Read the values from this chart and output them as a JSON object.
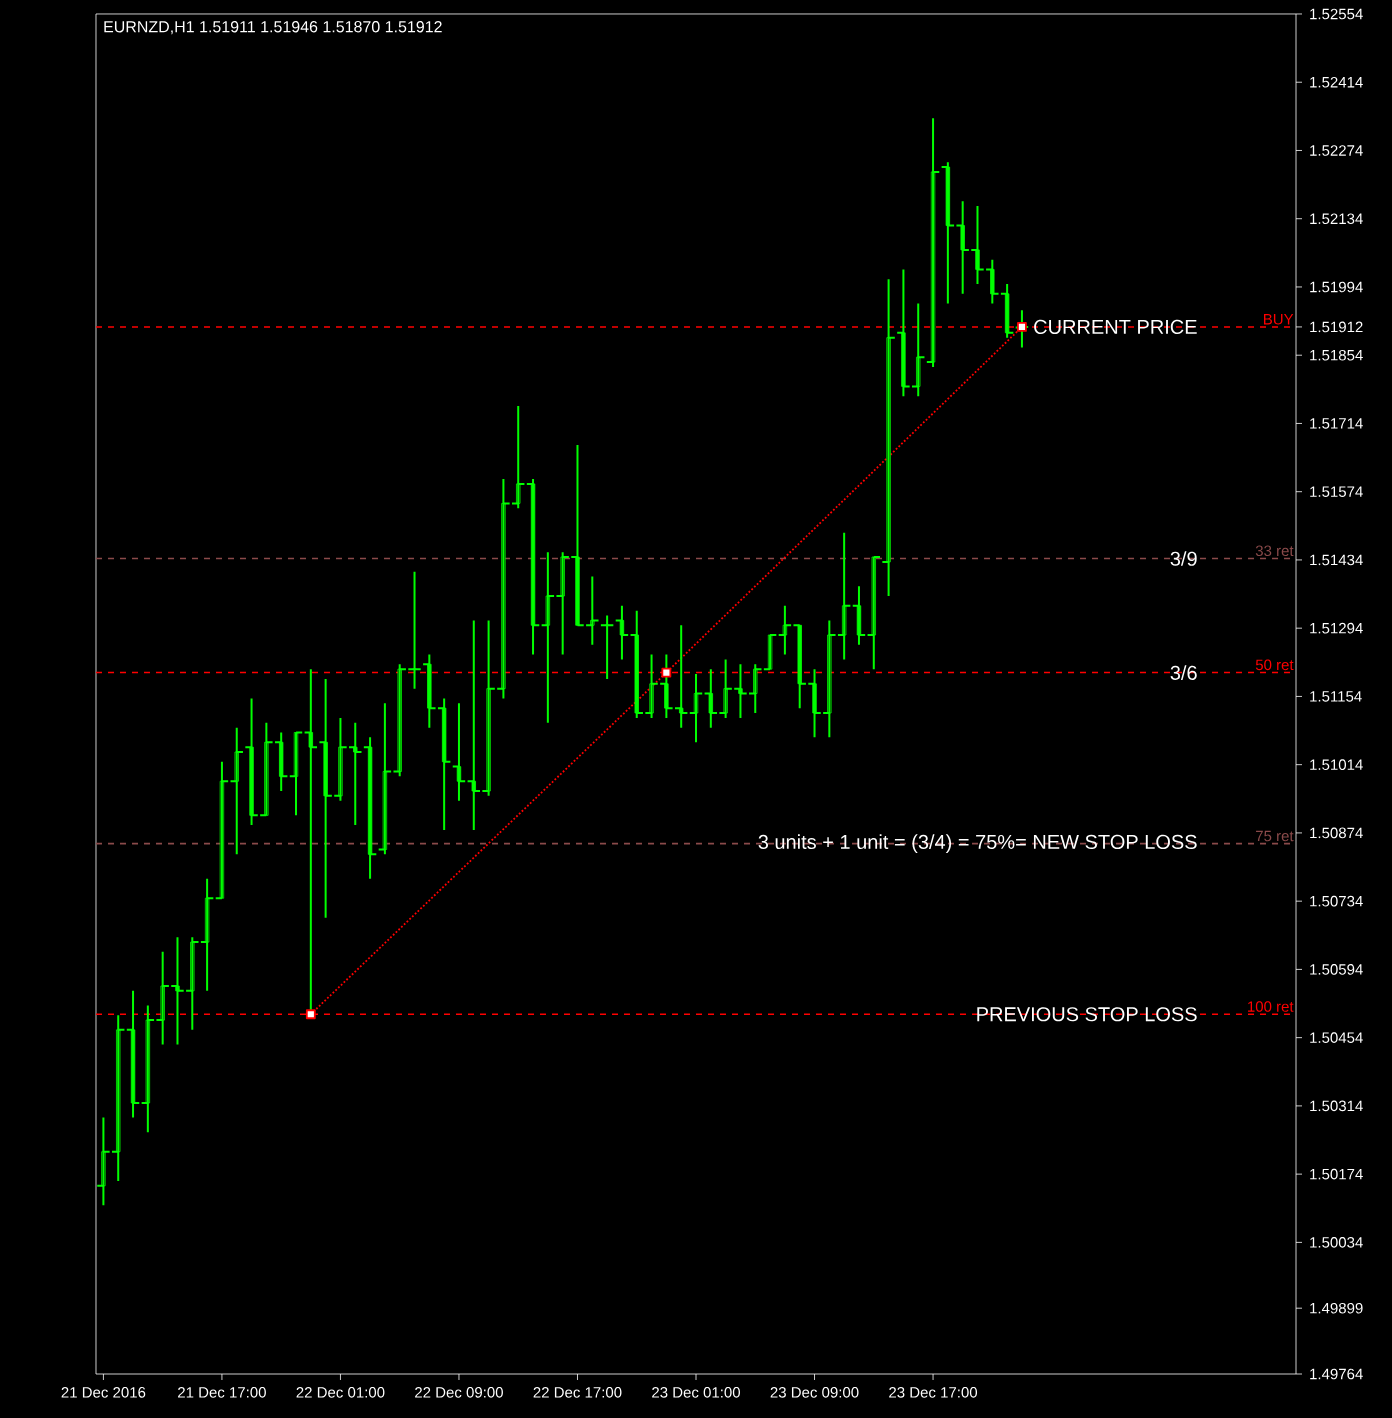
{
  "chart_data": {
    "type": "candlestick",
    "title": "EURNZD,H1  1.51911 1.51946 1.51870 1.51912",
    "categories": [
      "21 Dec 2016",
      null,
      null,
      null,
      null,
      null,
      null,
      null,
      "21 Dec 17:00",
      null,
      null,
      null,
      null,
      null,
      null,
      null,
      "22 Dec 01:00",
      null,
      null,
      null,
      null,
      null,
      null,
      null,
      "22 Dec 09:00",
      null,
      null,
      null,
      null,
      null,
      null,
      null,
      "22 Dec 17:00",
      null,
      null,
      null,
      null,
      null,
      null,
      null,
      "23 Dec 01:00",
      null,
      null,
      null,
      null,
      null,
      null,
      null,
      "23 Dec 09:00",
      null,
      null,
      null,
      null,
      null,
      null,
      null,
      "23 Dec 17:00",
      null,
      null,
      null,
      null,
      null,
      null,
      null,
      null,
      null,
      null,
      null,
      null,
      null,
      null,
      null,
      null,
      null,
      null,
      null,
      null,
      null,
      null,
      null,
      null
    ],
    "color": "#00ff00",
    "ohlc": [
      [
        1.5015,
        1.5029,
        1.5011,
        1.5022
      ],
      [
        1.5022,
        1.505,
        1.5016,
        1.5047
      ],
      [
        1.5047,
        1.5055,
        1.5029,
        1.5032
      ],
      [
        1.5032,
        1.5052,
        1.5026,
        1.5049
      ],
      [
        1.5049,
        1.5063,
        1.5044,
        1.5056
      ],
      [
        1.5056,
        1.5066,
        1.5044,
        1.5055
      ],
      [
        1.5055,
        1.5066,
        1.5047,
        1.5065
      ],
      [
        1.5065,
        1.5078,
        1.5055,
        1.5074
      ],
      [
        1.5074,
        1.5102,
        1.5074,
        1.5098
      ],
      [
        1.5098,
        1.5109,
        1.5083,
        1.5104
      ],
      [
        1.5105,
        1.5115,
        1.5089,
        1.5091
      ],
      [
        1.5091,
        1.511,
        1.5091,
        1.5106
      ],
      [
        1.5106,
        1.5108,
        1.5096,
        1.5099
      ],
      [
        1.5099,
        1.5108,
        1.5091,
        1.5108
      ],
      [
        1.5108,
        1.5121,
        1.505,
        1.5105
      ],
      [
        1.5106,
        1.5119,
        1.507,
        1.5095
      ],
      [
        1.5095,
        1.5111,
        1.5094,
        1.5105
      ],
      [
        1.5105,
        1.511,
        1.5089,
        1.5104
      ],
      [
        1.5105,
        1.5107,
        1.5078,
        1.5083
      ],
      [
        1.5084,
        1.5114,
        1.5083,
        1.51
      ],
      [
        1.51,
        1.5122,
        1.5099,
        1.5121
      ],
      [
        1.5121,
        1.5141,
        1.5117,
        1.5121
      ],
      [
        1.5122,
        1.5124,
        1.5109,
        1.5113
      ],
      [
        1.5113,
        1.5115,
        1.5088,
        1.5102
      ],
      [
        1.5101,
        1.5114,
        1.5094,
        1.5098
      ],
      [
        1.5098,
        1.5131,
        1.5088,
        1.5096
      ],
      [
        1.5096,
        1.5131,
        1.5095,
        1.5117
      ],
      [
        1.5117,
        1.516,
        1.5115,
        1.5155
      ],
      [
        1.5155,
        1.5175,
        1.5154,
        1.5159
      ],
      [
        1.5159,
        1.516,
        1.5124,
        1.513
      ],
      [
        1.513,
        1.5145,
        1.511,
        1.5136
      ],
      [
        1.5136,
        1.5145,
        1.5124,
        1.5144
      ],
      [
        1.5144,
        1.5167,
        1.513,
        1.513
      ],
      [
        1.513,
        1.514,
        1.5126,
        1.5131
      ],
      [
        1.513,
        1.5132,
        1.5119,
        1.513
      ],
      [
        1.5131,
        1.5134,
        1.5123,
        1.5128
      ],
      [
        1.5128,
        1.5133,
        1.5111,
        1.5112
      ],
      [
        1.5112,
        1.5124,
        1.5111,
        1.5118
      ],
      [
        1.5118,
        1.5124,
        1.5111,
        1.5113
      ],
      [
        1.5113,
        1.513,
        1.5109,
        1.5112
      ],
      [
        1.5112,
        1.512,
        1.5106,
        1.5116
      ],
      [
        1.5116,
        1.5121,
        1.5109,
        1.5112
      ],
      [
        1.5112,
        1.5123,
        1.5111,
        1.5117
      ],
      [
        1.5117,
        1.5122,
        1.5111,
        1.5116
      ],
      [
        1.5116,
        1.5122,
        1.5112,
        1.5121
      ],
      [
        1.5121,
        1.5128,
        1.5121,
        1.5128
      ],
      [
        1.5128,
        1.5134,
        1.5124,
        1.513
      ],
      [
        1.513,
        1.513,
        1.5113,
        1.5118
      ],
      [
        1.5118,
        1.5121,
        1.5107,
        1.5112
      ],
      [
        1.5112,
        1.5131,
        1.5107,
        1.5128
      ],
      [
        1.5128,
        1.5149,
        1.5123,
        1.5134
      ],
      [
        1.5134,
        1.5138,
        1.5126,
        1.5128
      ],
      [
        1.5128,
        1.5144,
        1.5121,
        1.5144
      ],
      [
        1.5143,
        1.5201,
        1.5136,
        1.5189
      ],
      [
        1.519,
        1.5203,
        1.5177,
        1.5179
      ],
      [
        1.5179,
        1.5196,
        1.5177,
        1.5185
      ],
      [
        1.5184,
        1.5234,
        1.5183,
        1.5223
      ],
      [
        1.5224,
        1.5225,
        1.5196,
        1.5212
      ],
      [
        1.5212,
        1.5217,
        1.5198,
        1.5207
      ],
      [
        1.5207,
        1.5216,
        1.52,
        1.5203
      ],
      [
        1.5203,
        1.5205,
        1.5196,
        1.5198
      ],
      [
        1.5198,
        1.52,
        1.5189,
        1.519
      ],
      [
        1.51911,
        1.51946,
        1.5187,
        1.51912
      ],
      null,
      null,
      null,
      null,
      null,
      null,
      null,
      null,
      null,
      null,
      null,
      null,
      null,
      null,
      null,
      null,
      null,
      null
    ],
    "series": [
      {
        "type": "line",
        "color": "#ff0000",
        "line_style": "dotted",
        "marker": "square",
        "values": [
          null,
          null,
          null,
          null,
          null,
          null,
          null,
          null,
          null,
          null,
          null,
          null,
          null,
          null,
          1.50502,
          null,
          null,
          null,
          null,
          null,
          null,
          null,
          null,
          null,
          null,
          null,
          null,
          null,
          null,
          null,
          null,
          null,
          null,
          null,
          null,
          null,
          null,
          null,
          1.51203,
          null,
          null,
          null,
          null,
          null,
          null,
          null,
          null,
          null,
          null,
          null,
          null,
          null,
          null,
          null,
          null,
          null,
          null,
          null,
          null,
          null,
          null,
          null,
          1.51912,
          null,
          null,
          null,
          null,
          null,
          null,
          null,
          null,
          null,
          null,
          null,
          null,
          null,
          null,
          null,
          null,
          null,
          null
        ]
      }
    ],
    "ylim": [
      1.49764,
      1.52554
    ],
    "yticks": [
      1.49764,
      1.49899,
      1.50034,
      1.50174,
      1.50314,
      1.50454,
      1.50594,
      1.50734,
      1.50874,
      1.51014,
      1.51154,
      1.51294,
      1.51434,
      1.51574,
      1.51714,
      1.51854,
      1.51912,
      1.51994,
      1.52134,
      1.52274,
      1.52414,
      1.52554
    ],
    "ref_lines": [
      {
        "axis": "y",
        "value": 1.51912,
        "label": "BUY",
        "color": "#ff0000",
        "line_style": "dashed"
      },
      {
        "axis": "y",
        "value": 1.51437,
        "label": "33 ret",
        "color": "#8a4a4a",
        "line_style": "dashed"
      },
      {
        "axis": "y",
        "value": 1.51203,
        "label": "50 ret",
        "color": "#ff0000",
        "line_style": "dashed"
      },
      {
        "axis": "y",
        "value": 1.50852,
        "label": "75 ret",
        "color": "#8a4a4a",
        "line_style": "dashed"
      },
      {
        "axis": "y",
        "value": 1.50502,
        "label": "100 ret",
        "color": "#ff0000",
        "line_style": "dashed"
      }
    ],
    "annotations": [
      {
        "text": "CURRENT PRICE",
        "y": 1.51912
      },
      {
        "text": "3/9",
        "y": 1.51437
      },
      {
        "text": "3/6",
        "y": 1.51203
      },
      {
        "text": "3 units + 1 unit = (3/4) = 75%= NEW STOP LOSS",
        "y": 1.50852
      },
      {
        "text": "PREVIOUS STOP LOSS",
        "y": 1.50502
      }
    ],
    "grid": false
  }
}
